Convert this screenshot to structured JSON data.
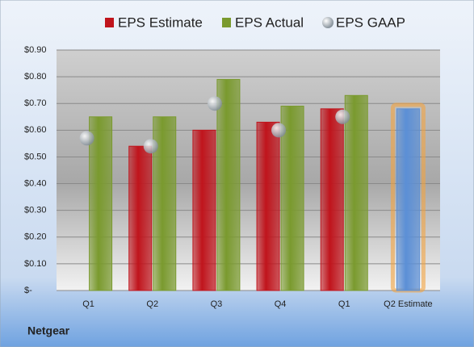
{
  "chart_data": {
    "type": "bar",
    "categories": [
      "Q1",
      "Q2",
      "Q3",
      "Q4",
      "Q1",
      "Q2 Estimate"
    ],
    "series": [
      {
        "name": "EPS Estimate",
        "color": "#c0141c",
        "colors": [
          "#c0141c",
          "#c0141c",
          "#c0141c",
          "#c0141c",
          "#c0141c",
          "#5b8fd6"
        ],
        "glow_color": "#f4a340",
        "values": [
          null,
          0.54,
          0.6,
          0.63,
          0.68,
          0.68
        ]
      },
      {
        "name": "EPS Actual",
        "color": "#7a9a2e",
        "values": [
          0.65,
          0.65,
          0.79,
          0.69,
          0.73,
          null
        ]
      },
      {
        "name": "EPS GAAP",
        "color": "#a9b4bd",
        "marker": "circle",
        "values": [
          0.57,
          0.54,
          0.7,
          0.6,
          0.65,
          null
        ]
      }
    ],
    "ylim": [
      0,
      0.9
    ],
    "yticks": [
      {
        "value": 0,
        "label": "$-"
      },
      {
        "value": 0.1,
        "label": "$0.10"
      },
      {
        "value": 0.2,
        "label": "$0.20"
      },
      {
        "value": 0.3,
        "label": "$0.30"
      },
      {
        "value": 0.4,
        "label": "$0.40"
      },
      {
        "value": 0.5,
        "label": "$0.50"
      },
      {
        "value": 0.6,
        "label": "$0.60"
      },
      {
        "value": 0.7,
        "label": "$0.70"
      },
      {
        "value": 0.8,
        "label": "$0.80"
      },
      {
        "value": 0.9,
        "label": "$0.90"
      }
    ],
    "grid": true,
    "footer": "Netgear"
  }
}
